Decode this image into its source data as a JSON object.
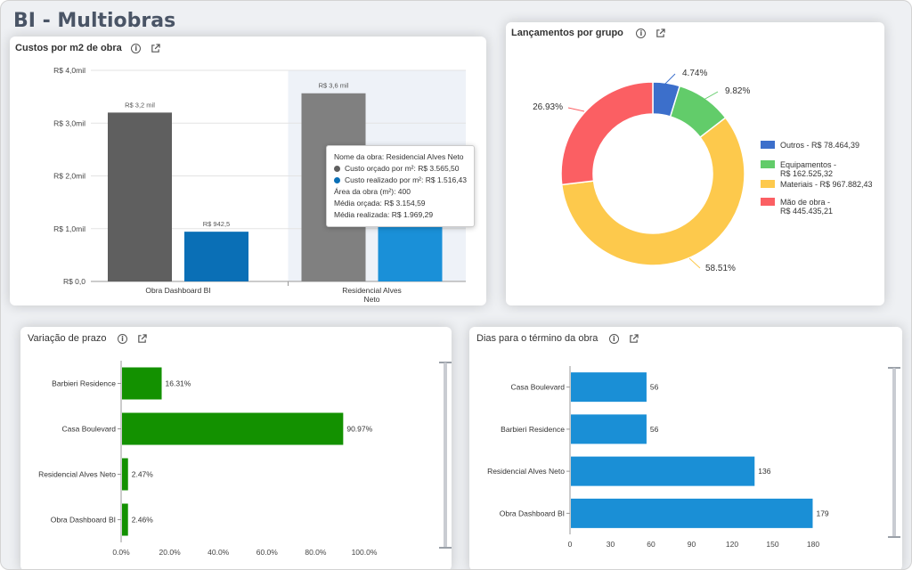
{
  "app": {
    "title": "BI - Multiobras"
  },
  "colors": {
    "gray_bar": "#5f5f5f",
    "gray_bar_hover": "#808080",
    "blue_bar": "#0a6fb6",
    "blue_bar_hover": "#1a90d8",
    "green_bar": "#139100",
    "hbar_blue": "#1a8fd6",
    "pie_outros": "#3c6fcb",
    "pie_equip": "#62cc6a",
    "pie_materiais": "#fdc94c",
    "pie_mao": "#fb5f63"
  },
  "cards": {
    "custos": {
      "title": "Custos por m2 de obra",
      "info_icon": "info-icon",
      "export_icon": "external-link-icon"
    },
    "lancamentos": {
      "title": "Lançamentos por grupo",
      "info_icon": "info-icon",
      "export_icon": "external-link-icon"
    },
    "variacao": {
      "title": "Variação de prazo",
      "info_icon": "info-icon",
      "export_icon": "external-link-icon"
    },
    "dias": {
      "title": "Dias para o término da obra",
      "info_icon": "info-icon",
      "export_icon": "external-link-icon"
    }
  },
  "tooltip": {
    "line1": "Nome da obra: Residencial Alves Neto",
    "line2": "Custo orçado por m²: R$ 3.565,50",
    "line3": "Custo realizado por m²: R$ 1.516,43",
    "line4": "Área da obra (m²): 400",
    "line5": "Média orçada: R$ 3.154,59",
    "line6": "Média realizada: R$ 1.969,29"
  },
  "chart_data": [
    {
      "type": "bar",
      "title": "Custos por m2 de obra",
      "categories": [
        "Obra Dashboard BI",
        "Residencial Alves Neto"
      ],
      "series": [
        {
          "name": "Custo orçado por m²",
          "values": [
            3200,
            3565.5
          ],
          "labels": [
            "R$ 3,2 mil",
            "R$ 3,6 mil"
          ]
        },
        {
          "name": "Custo realizado por m²",
          "values": [
            942.5,
            1516.43
          ],
          "labels": [
            "R$ 942,5",
            ""
          ]
        }
      ],
      "ylim": [
        0,
        4000
      ],
      "yticks": [
        0,
        1000,
        2000,
        3000,
        4000
      ],
      "ytick_labels": [
        "R$ 0,0",
        "R$ 1,0mil",
        "R$ 2,0mil",
        "R$ 3,0mil",
        "R$ 4,0mil"
      ],
      "xtick_labels": [
        [
          "Obra Dashboard BI"
        ],
        [
          "Residencial Alves",
          "Neto"
        ]
      ],
      "grid": true
    },
    {
      "type": "pie",
      "title": "Lançamentos por grupo",
      "donut": true,
      "legend_position": "right",
      "slices": [
        {
          "legend": [
            "Outros - R$ 78.464,39"
          ],
          "value": 78464.39,
          "percent_label": "4.74%"
        },
        {
          "legend": [
            "Equipamentos -",
            "R$ 162.525,32"
          ],
          "value": 162525.32,
          "percent_label": "9.82%"
        },
        {
          "legend": [
            "Materiais - R$ 967.882,43"
          ],
          "value": 967882.43,
          "percent_label": "58.51%"
        },
        {
          "legend": [
            "Mão de obra -",
            "R$ 445.435,21"
          ],
          "value": 445435.21,
          "percent_label": "26.93%"
        }
      ]
    },
    {
      "type": "bar",
      "orientation": "horizontal",
      "title": "Variação de prazo",
      "categories": [
        "Barbieri Residence",
        "Casa Boulevard",
        "Residencial Alves Neto",
        "Obra Dashboard BI"
      ],
      "values": [
        16.31,
        90.97,
        2.47,
        2.46
      ],
      "value_labels": [
        "16.31%",
        "90.97%",
        "2.47%",
        "2.46%"
      ],
      "xlim": [
        0,
        100
      ],
      "xticks": [
        0,
        20,
        40,
        60,
        80,
        100
      ],
      "xtick_labels": [
        "0.0%",
        "20.0%",
        "40.0%",
        "60.0%",
        "80.0%",
        "100.0%"
      ]
    },
    {
      "type": "bar",
      "orientation": "horizontal",
      "title": "Dias para o término da obra",
      "categories": [
        "Casa Boulevard",
        "Barbieri Residence",
        "Residencial Alves Neto",
        "Obra Dashboard BI"
      ],
      "values": [
        56,
        56,
        136,
        179
      ],
      "value_labels": [
        "56",
        "56",
        "136",
        "179"
      ],
      "xlim": [
        0,
        180
      ],
      "xticks": [
        0,
        30,
        60,
        90,
        120,
        150,
        180
      ],
      "xtick_labels": [
        "0",
        "30",
        "60",
        "90",
        "120",
        "150",
        "180"
      ]
    }
  ]
}
